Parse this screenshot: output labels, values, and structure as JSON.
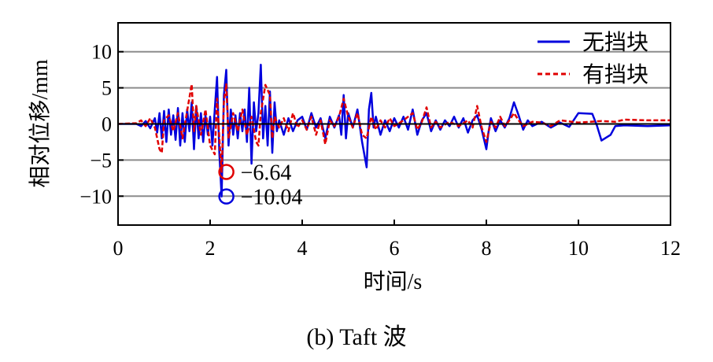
{
  "chart_data": {
    "type": "line",
    "xlabel": "时间/s",
    "ylabel": "相对位移/mm",
    "caption": "(b) Taft 波",
    "xlim": [
      0,
      12
    ],
    "ylim": [
      -14,
      14
    ],
    "xticks": [
      0,
      2,
      4,
      6,
      8,
      10,
      12
    ],
    "yticks": [
      -10,
      -5,
      0,
      5,
      10
    ],
    "ytick_labels": [
      "−10",
      "−5",
      "0",
      "5",
      "10"
    ],
    "grid": "horizontal",
    "legend_position": "top-right",
    "series": [
      {
        "name": "无挡块",
        "color": "#0000dd",
        "style": "solid",
        "points": [
          [
            0,
            0
          ],
          [
            0.4,
            0
          ],
          [
            0.5,
            -0.3
          ],
          [
            0.6,
            0.4
          ],
          [
            0.7,
            -0.6
          ],
          [
            0.8,
            0.8
          ],
          [
            0.85,
            -1.2
          ],
          [
            0.9,
            1.5
          ],
          [
            0.95,
            -2
          ],
          [
            1.0,
            1.8
          ],
          [
            1.05,
            -2.5
          ],
          [
            1.1,
            2
          ],
          [
            1.15,
            -1.5
          ],
          [
            1.2,
            1.2
          ],
          [
            1.25,
            -2.2
          ],
          [
            1.3,
            2.2
          ],
          [
            1.35,
            -3
          ],
          [
            1.4,
            1.5
          ],
          [
            1.45,
            -2.5
          ],
          [
            1.5,
            2
          ],
          [
            1.55,
            -1
          ],
          [
            1.6,
            3
          ],
          [
            1.65,
            -3.5
          ],
          [
            1.7,
            2.5
          ],
          [
            1.75,
            -2
          ],
          [
            1.8,
            1.5
          ],
          [
            1.85,
            -2.5
          ],
          [
            1.9,
            1.2
          ],
          [
            1.95,
            -1.5
          ],
          [
            2.0,
            1
          ],
          [
            2.05,
            -3
          ],
          [
            2.1,
            2
          ],
          [
            2.15,
            6.5
          ],
          [
            2.2,
            -4
          ],
          [
            2.25,
            -10.04
          ],
          [
            2.3,
            4
          ],
          [
            2.35,
            7.5
          ],
          [
            2.4,
            -3
          ],
          [
            2.45,
            2
          ],
          [
            2.5,
            -1.5
          ],
          [
            2.55,
            1.2
          ],
          [
            2.6,
            -2
          ],
          [
            2.65,
            1.5
          ],
          [
            2.7,
            -1
          ],
          [
            2.75,
            2
          ],
          [
            2.8,
            -2.5
          ],
          [
            2.85,
            5
          ],
          [
            2.9,
            -5.5
          ],
          [
            2.95,
            3
          ],
          [
            3.0,
            -1
          ],
          [
            3.05,
            1.5
          ],
          [
            3.1,
            8.2
          ],
          [
            3.15,
            -2
          ],
          [
            3.2,
            2.5
          ],
          [
            3.25,
            -3
          ],
          [
            3.3,
            4.5
          ],
          [
            3.35,
            -4
          ],
          [
            3.4,
            3
          ],
          [
            3.45,
            -1
          ],
          [
            3.5,
            0.5
          ],
          [
            3.6,
            -1.5
          ],
          [
            3.7,
            0.8
          ],
          [
            3.8,
            -1
          ],
          [
            3.9,
            0.5
          ],
          [
            4.0,
            1
          ],
          [
            4.1,
            -0.8
          ],
          [
            4.2,
            1.5
          ],
          [
            4.3,
            -0.5
          ],
          [
            4.4,
            0.8
          ],
          [
            4.5,
            -2
          ],
          [
            4.6,
            1
          ],
          [
            4.7,
            -0.5
          ],
          [
            4.8,
            1.2
          ],
          [
            4.85,
            -1.5
          ],
          [
            4.9,
            4
          ],
          [
            4.95,
            -2
          ],
          [
            5.0,
            1.5
          ],
          [
            5.1,
            -0.5
          ],
          [
            5.2,
            2
          ],
          [
            5.3,
            -2.5
          ],
          [
            5.4,
            -6
          ],
          [
            5.45,
            2
          ],
          [
            5.5,
            4.3
          ],
          [
            5.55,
            -0.5
          ],
          [
            5.6,
            1
          ],
          [
            5.7,
            -1.5
          ],
          [
            5.8,
            0.5
          ],
          [
            5.9,
            -1
          ],
          [
            6.0,
            0.8
          ],
          [
            6.1,
            -0.5
          ],
          [
            6.2,
            1
          ],
          [
            6.3,
            -0.8
          ],
          [
            6.4,
            2
          ],
          [
            6.5,
            -1.5
          ],
          [
            6.6,
            0.5
          ],
          [
            6.7,
            1.5
          ],
          [
            6.8,
            -1
          ],
          [
            6.9,
            0.5
          ],
          [
            7.0,
            -0.8
          ],
          [
            7.1,
            0.5
          ],
          [
            7.2,
            -0.3
          ],
          [
            7.3,
            1
          ],
          [
            7.4,
            -0.5
          ],
          [
            7.5,
            0.8
          ],
          [
            7.6,
            -1.2
          ],
          [
            7.7,
            0.5
          ],
          [
            7.8,
            1.2
          ],
          [
            7.9,
            -0.8
          ],
          [
            8.0,
            -3.5
          ],
          [
            8.05,
            -1
          ],
          [
            8.1,
            0.8
          ],
          [
            8.2,
            -1
          ],
          [
            8.3,
            0.5
          ],
          [
            8.4,
            -0.5
          ],
          [
            8.5,
            0.8
          ],
          [
            8.6,
            3
          ],
          [
            8.7,
            1.2
          ],
          [
            8.8,
            -0.8
          ],
          [
            8.9,
            0.5
          ],
          [
            9.0,
            -0.3
          ],
          [
            9.2,
            0.3
          ],
          [
            9.4,
            -0.5
          ],
          [
            9.6,
            0.2
          ],
          [
            9.8,
            -0.4
          ],
          [
            10.0,
            1.5
          ],
          [
            10.3,
            1.4
          ],
          [
            10.4,
            -0.2
          ],
          [
            10.5,
            -2.3
          ],
          [
            10.7,
            -1.5
          ],
          [
            10.8,
            -0.3
          ],
          [
            11.0,
            -0.2
          ],
          [
            11.5,
            -0.3
          ],
          [
            12,
            -0.2
          ]
        ]
      },
      {
        "name": "有挡块",
        "color": "#e00000",
        "style": "dashed",
        "points": [
          [
            0,
            0
          ],
          [
            0.4,
            0.1
          ],
          [
            0.5,
            0.5
          ],
          [
            0.6,
            -0.3
          ],
          [
            0.7,
            0.8
          ],
          [
            0.8,
            -0.5
          ],
          [
            0.9,
            -3.5
          ],
          [
            0.95,
            -4
          ],
          [
            1.0,
            0.5
          ],
          [
            1.1,
            1.2
          ],
          [
            1.2,
            -1
          ],
          [
            1.3,
            1.5
          ],
          [
            1.4,
            -2
          ],
          [
            1.5,
            1.8
          ],
          [
            1.6,
            5.5
          ],
          [
            1.65,
            -1
          ],
          [
            1.7,
            2.5
          ],
          [
            1.8,
            -1.5
          ],
          [
            1.9,
            2
          ],
          [
            2.0,
            -3
          ],
          [
            2.1,
            -4.2
          ],
          [
            2.15,
            3.5
          ],
          [
            2.2,
            -2
          ],
          [
            2.25,
            -6.64
          ],
          [
            2.3,
            3
          ],
          [
            2.35,
            5.5
          ],
          [
            2.4,
            -2
          ],
          [
            2.5,
            1.5
          ],
          [
            2.6,
            -1
          ],
          [
            2.7,
            2
          ],
          [
            2.8,
            -1.5
          ],
          [
            2.9,
            1
          ],
          [
            3.0,
            -2.5
          ],
          [
            3.05,
            -3
          ],
          [
            3.1,
            1.5
          ],
          [
            3.2,
            5.4
          ],
          [
            3.3,
            4
          ],
          [
            3.35,
            -2
          ],
          [
            3.4,
            1
          ],
          [
            3.5,
            -0.5
          ],
          [
            3.6,
            0.8
          ],
          [
            3.7,
            -1
          ],
          [
            3.8,
            1.5
          ],
          [
            3.9,
            -0.5
          ],
          [
            4.0,
            0.5
          ],
          [
            4.1,
            -0.8
          ],
          [
            4.2,
            1
          ],
          [
            4.3,
            -1.5
          ],
          [
            4.4,
            0.5
          ],
          [
            4.5,
            -2.8
          ],
          [
            4.6,
            0.5
          ],
          [
            4.7,
            -0.3
          ],
          [
            4.8,
            1
          ],
          [
            4.9,
            3.5
          ],
          [
            5.0,
            1
          ],
          [
            5.1,
            -0.5
          ],
          [
            5.2,
            1.5
          ],
          [
            5.3,
            -1.5
          ],
          [
            5.4,
            -2
          ],
          [
            5.5,
            1
          ],
          [
            5.6,
            -0.8
          ],
          [
            5.7,
            0.5
          ],
          [
            5.8,
            -0.5
          ],
          [
            5.9,
            0.8
          ],
          [
            6.0,
            -0.3
          ],
          [
            6.2,
            0.5
          ],
          [
            6.4,
            1.5
          ],
          [
            6.5,
            -0.8
          ],
          [
            6.6,
            0.3
          ],
          [
            6.7,
            2.3
          ],
          [
            6.8,
            -0.5
          ],
          [
            6.9,
            0.3
          ],
          [
            7.0,
            -0.5
          ],
          [
            7.2,
            0.3
          ],
          [
            7.4,
            -0.3
          ],
          [
            7.6,
            0.5
          ],
          [
            7.7,
            -0.5
          ],
          [
            7.8,
            2.5
          ],
          [
            7.9,
            -0.5
          ],
          [
            8.0,
            -2.5
          ],
          [
            8.1,
            0.3
          ],
          [
            8.2,
            -0.5
          ],
          [
            8.3,
            1
          ],
          [
            8.4,
            -0.3
          ],
          [
            8.5,
            0.5
          ],
          [
            8.6,
            1.5
          ],
          [
            8.7,
            0.5
          ],
          [
            8.8,
            -0.3
          ],
          [
            9.0,
            0.3
          ],
          [
            9.2,
            0.2
          ],
          [
            9.4,
            -0.3
          ],
          [
            9.6,
            0.5
          ],
          [
            10.0,
            0.2
          ],
          [
            10.5,
            0.4
          ],
          [
            10.8,
            0.3
          ],
          [
            11.0,
            0.6
          ],
          [
            11.5,
            0.5
          ],
          [
            12,
            0.5
          ]
        ]
      }
    ],
    "annotations": [
      {
        "x": 2.25,
        "y": -6.64,
        "label": "−6.64",
        "color": "#e00000"
      },
      {
        "x": 2.25,
        "y": -10.04,
        "label": "−10.04",
        "color": "#0000dd"
      }
    ]
  }
}
